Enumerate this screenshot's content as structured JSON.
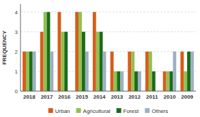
{
  "chart_data": {
    "type": "bar",
    "ylabel": "FREQUENCY",
    "categories": [
      "2018",
      "2017",
      "2016",
      "2015",
      "2014",
      "2013",
      "2012",
      "2011",
      "2010",
      "2009"
    ],
    "series": [
      {
        "name": "Urban",
        "color": "#D95B1A",
        "values": [
          2,
          3,
          4,
          4,
          4,
          2,
          2,
          2,
          1,
          2
        ]
      },
      {
        "name": "Agricultural",
        "color": "#92C050",
        "values": [
          2,
          4,
          3,
          4,
          3,
          1,
          2,
          2,
          1,
          1
        ]
      },
      {
        "name": "Forest",
        "color": "#1B6B1A",
        "values": [
          2,
          4,
          3,
          3,
          3,
          1,
          1,
          1,
          1,
          2
        ]
      },
      {
        "name": "Others",
        "color": "#9EB0C2",
        "values": [
          2,
          2,
          0,
          2,
          2,
          1,
          1,
          0,
          2,
          2
        ]
      }
    ],
    "ylim": [
      0,
      4.4
    ],
    "yticks": [
      0,
      1,
      2,
      3,
      4
    ],
    "grid": true,
    "legend": "bottom"
  }
}
